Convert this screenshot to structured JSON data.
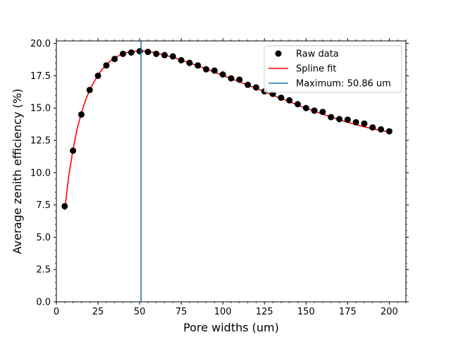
{
  "chart_data": {
    "type": "scatter",
    "title": "",
    "xlabel": "Pore widths (um)",
    "ylabel": "Average zenith efficiency (%)",
    "xlim": [
      0,
      210
    ],
    "ylim": [
      0,
      20.2
    ],
    "xticks": [
      0,
      25,
      50,
      75,
      100,
      125,
      150,
      175,
      200
    ],
    "xtick_labels": [
      "0",
      "25",
      "50",
      "75",
      "100",
      "125",
      "150",
      "175",
      "200"
    ],
    "yticks": [
      0.0,
      2.5,
      5.0,
      7.5,
      10.0,
      12.5,
      15.0,
      17.5,
      20.0
    ],
    "ytick_labels": [
      "0.0",
      "2.5",
      "5.0",
      "7.5",
      "10.0",
      "12.5",
      "15.0",
      "17.5",
      "20.0"
    ],
    "minor_ticks": true,
    "grid": false,
    "legend_position": "top-right",
    "series": [
      {
        "name": "Raw data",
        "kind": "scatter",
        "color": "#000000",
        "x": [
          5,
          10,
          15,
          20,
          25,
          30,
          35,
          40,
          45,
          50,
          55,
          60,
          65,
          70,
          75,
          80,
          85,
          90,
          95,
          100,
          105,
          110,
          115,
          120,
          125,
          130,
          135,
          140,
          145,
          150,
          155,
          160,
          165,
          170,
          175,
          180,
          185,
          190,
          195,
          200
        ],
        "y": [
          7.4,
          11.7,
          14.5,
          16.4,
          17.5,
          18.3,
          18.8,
          19.2,
          19.3,
          19.4,
          19.35,
          19.2,
          19.1,
          19.0,
          18.7,
          18.5,
          18.3,
          18.0,
          17.9,
          17.6,
          17.3,
          17.2,
          16.8,
          16.6,
          16.3,
          16.1,
          15.8,
          15.6,
          15.3,
          15.0,
          14.8,
          14.7,
          14.3,
          14.15,
          14.1,
          13.9,
          13.8,
          13.5,
          13.35,
          13.2
        ]
      },
      {
        "name": "Spline fit",
        "kind": "line",
        "color": "#ff0000",
        "x": [
          5,
          7.5,
          10,
          12.5,
          15,
          17.5,
          20,
          22.5,
          25,
          27.5,
          30,
          32.5,
          35,
          37.5,
          40,
          42.5,
          45,
          47.5,
          50,
          52.5,
          55,
          57.5,
          60,
          65,
          70,
          75,
          80,
          85,
          90,
          95,
          100,
          105,
          110,
          115,
          120,
          125,
          130,
          135,
          140,
          145,
          150,
          155,
          160,
          165,
          170,
          175,
          180,
          185,
          190,
          195,
          200
        ],
        "y": [
          7.1,
          9.8,
          11.8,
          13.4,
          14.6,
          15.6,
          16.4,
          17.0,
          17.55,
          18.0,
          18.35,
          18.65,
          18.9,
          19.05,
          19.2,
          19.3,
          19.36,
          19.4,
          19.42,
          19.41,
          19.38,
          19.33,
          19.26,
          19.1,
          18.93,
          18.72,
          18.5,
          18.27,
          18.03,
          17.78,
          17.53,
          17.28,
          17.03,
          16.78,
          16.52,
          16.26,
          16.0,
          15.74,
          15.49,
          15.24,
          14.99,
          14.76,
          14.53,
          14.31,
          14.1,
          13.9,
          13.72,
          13.55,
          13.4,
          13.27,
          13.15
        ]
      },
      {
        "name": "Maximum: 50.86 um",
        "kind": "vline",
        "color": "#1f77b4",
        "x_value": 50.86
      }
    ]
  }
}
